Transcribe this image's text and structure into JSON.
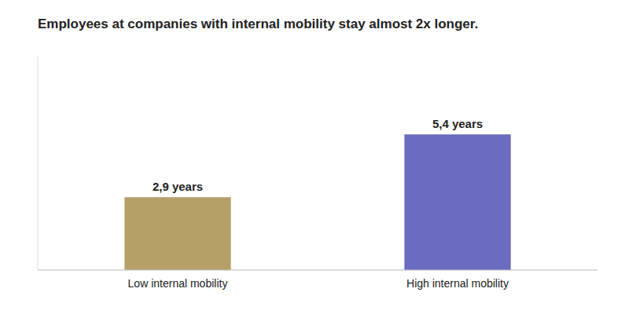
{
  "chart_data": {
    "type": "bar",
    "title": "Employees at companies with internal mobility stay almost 2x longer.",
    "categories": [
      "Low internal mobility",
      "High internal mobility"
    ],
    "values": [
      2.9,
      5.4
    ],
    "value_labels": [
      "2,9 years",
      "5,4 years"
    ],
    "colors": [
      "#b5a06a",
      "#6b6bbf"
    ],
    "ylim": [
      0,
      8.5
    ],
    "data_labels": true,
    "tick_labels": "x"
  }
}
